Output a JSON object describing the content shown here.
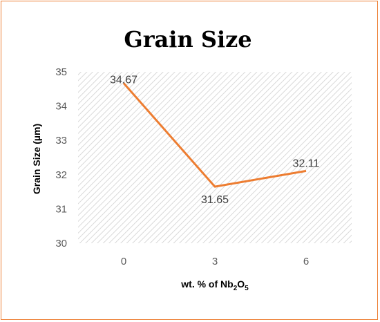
{
  "chart_data": {
    "type": "line",
    "title": "Grain Size",
    "xlabel": {
      "main": "wt. % of Nb",
      "sub1": "2",
      "mid": "O",
      "sub2": "5"
    },
    "ylabel": "Grain Size (µm)",
    "categories": [
      "0",
      "3",
      "6"
    ],
    "series": [
      {
        "values": [
          34.67,
          31.65,
          32.11
        ],
        "labels": [
          "34.67",
          "31.65",
          "32.11"
        ],
        "color": "#ED7D31"
      }
    ],
    "ylim": [
      30,
      35
    ],
    "yticks": [
      "30",
      "31",
      "32",
      "33",
      "34",
      "35"
    ],
    "grid": false,
    "plot_fill": "diagonal-hatch",
    "legend": "none"
  },
  "colors": {
    "line": "#ED7D31",
    "border": "#ED7D31",
    "hatch": "#D9D9D9"
  }
}
